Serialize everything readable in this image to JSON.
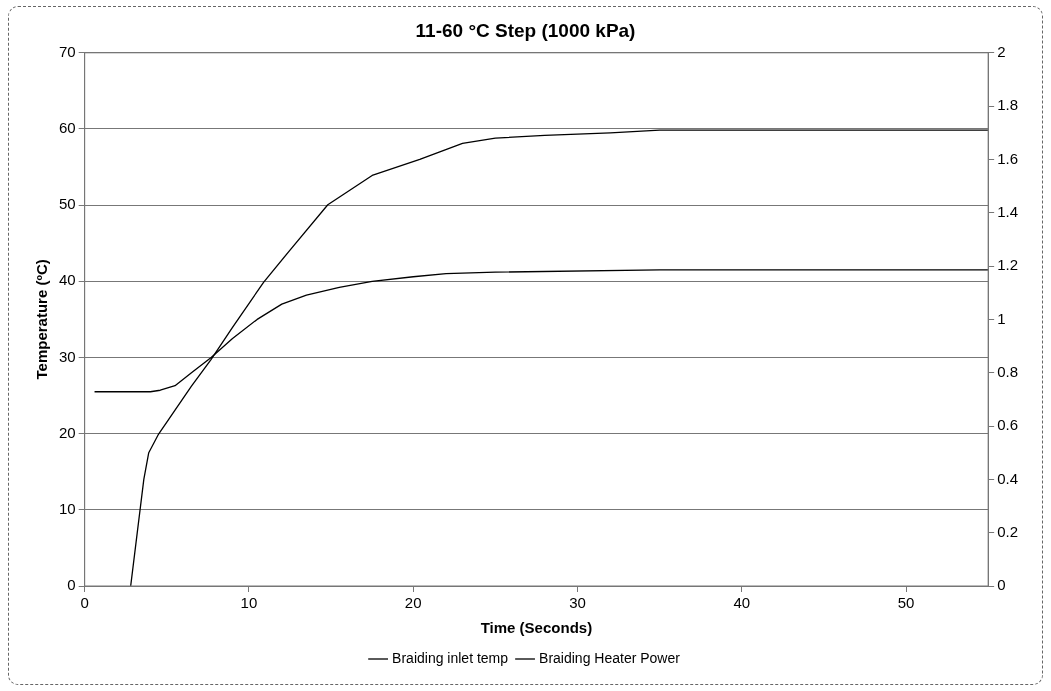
{
  "chart_data": {
    "type": "line",
    "title": "11-60 °C Step (1000 kPa)",
    "xlabel": "Time (Seconds)",
    "ylabel": "Temperature (ºC)",
    "xlim": [
      0,
      55
    ],
    "xticks": [
      0,
      10,
      20,
      30,
      40,
      50
    ],
    "ylim": [
      0,
      70
    ],
    "yticks": [
      0,
      10,
      20,
      30,
      40,
      50,
      60,
      70
    ],
    "y2lim": [
      0,
      2
    ],
    "y2ticks": [
      0,
      0.2,
      0.4,
      0.6,
      0.8,
      1,
      1.2,
      1.4,
      1.6,
      1.8,
      2
    ],
    "grid": "y",
    "legend": "bottom",
    "marker": "none",
    "line_style": "solid",
    "series": [
      {
        "name": "Braiding inlet temp",
        "color": "#000000",
        "x": [
          0.6,
          2,
          4,
          4.6,
          5.5,
          6.5,
          7.7,
          9,
          10.5,
          12,
          13.5,
          15.5,
          17.5,
          20,
          22,
          25,
          35,
          45,
          55
        ],
        "values": [
          25.5,
          25.5,
          25.5,
          25.7,
          26.3,
          28,
          30,
          32.5,
          35,
          37,
          38.2,
          39.2,
          40,
          40.6,
          41,
          41.2,
          41.5,
          41.5,
          41.5
        ]
      },
      {
        "name": "Braiding Heater Power",
        "color": "#000000",
        "axis": "y2",
        "x": [
          2.8,
          3.2,
          3.6,
          3.9,
          4.5,
          5.5,
          6.5,
          7.7,
          9,
          10.9,
          12.5,
          14.8,
          17.5,
          20.4,
          23,
          25,
          28,
          32,
          35,
          45,
          55
        ],
        "values": [
          0,
          0.2,
          0.4,
          0.5,
          0.57,
          0.66,
          0.75,
          0.85,
          0.97,
          1.14,
          1.26,
          1.43,
          1.54,
          1.6,
          1.66,
          1.68,
          1.69,
          1.7,
          1.71,
          1.71,
          1.71
        ]
      }
    ]
  }
}
